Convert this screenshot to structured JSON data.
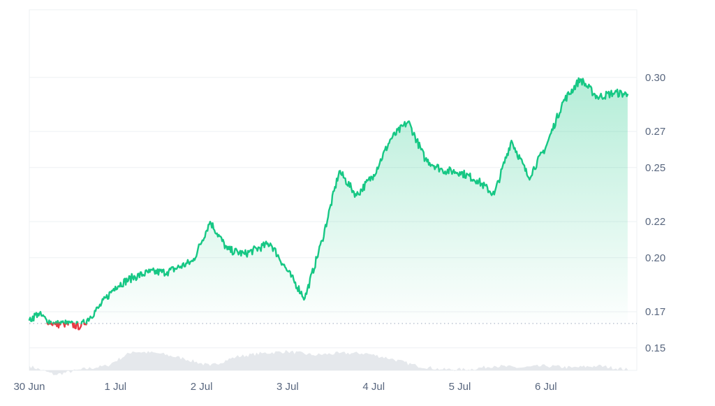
{
  "chart_data": {
    "type": "area",
    "title": "",
    "xlabel": "",
    "ylabel": "",
    "x_ticks": [
      "30 Jun",
      "1 Jul",
      "2 Jul",
      "3 Jul",
      "4 Jul",
      "5 Jul",
      "6 Jul"
    ],
    "y_ticks": [
      "0.30",
      "0.27",
      "0.25",
      "0.22",
      "0.20",
      "0.17",
      "0.15"
    ],
    "ylim": [
      0.1375,
      0.3375
    ],
    "reference_line": 0.1635,
    "grid": true,
    "colors": {
      "up": "#16c784",
      "down": "#ea3943",
      "volume": "#e5e8ec",
      "grid": "#eef0f3",
      "reference": "#a6b0c3"
    },
    "series": [
      {
        "day": [
          0.0,
          0.1,
          0.2,
          0.3,
          0.4,
          0.6,
          0.8,
          1.0,
          1.2,
          1.4,
          1.6,
          1.9,
          2.1,
          2.3,
          2.5,
          2.8,
          3.0,
          3.2,
          3.4,
          3.6,
          3.8,
          4.0,
          4.2,
          4.4,
          4.6,
          4.8,
          5.0,
          5.2,
          5.4,
          5.6,
          5.8,
          6.0,
          6.2,
          6.4,
          6.6,
          6.8,
          6.95
        ],
        "price": [
          0.1655,
          0.169,
          0.1655,
          0.163,
          0.1635,
          0.162,
          0.172,
          0.184,
          0.189,
          0.192,
          0.192,
          0.198,
          0.22,
          0.2045,
          0.202,
          0.208,
          0.1925,
          0.1775,
          0.2095,
          0.248,
          0.2345,
          0.246,
          0.266,
          0.2755,
          0.2545,
          0.2485,
          0.2475,
          0.243,
          0.235,
          0.265,
          0.2445,
          0.2615,
          0.2865,
          0.299,
          0.289,
          0.2915,
          0.2905
        ]
      }
    ],
    "volume_series": {
      "day": [
        0.0,
        0.3,
        0.6,
        0.9,
        1.2,
        1.5,
        1.8,
        2.1,
        2.4,
        2.7,
        3.0,
        3.3,
        3.6,
        3.9,
        4.2,
        4.5,
        4.8,
        5.1,
        5.4,
        5.7,
        6.0,
        6.3,
        6.6,
        6.95
      ],
      "level": [
        0.14,
        0.135,
        0.138,
        0.14,
        0.148,
        0.147,
        0.144,
        0.14,
        0.145,
        0.147,
        0.148,
        0.146,
        0.147,
        0.147,
        0.144,
        0.14,
        0.138,
        0.138,
        0.14,
        0.139,
        0.14,
        0.139,
        0.14,
        0.138
      ]
    }
  }
}
